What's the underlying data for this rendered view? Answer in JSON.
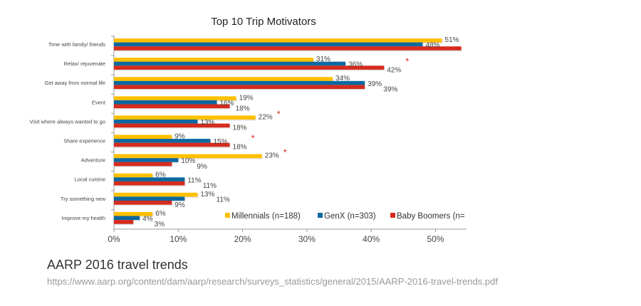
{
  "chart_data": {
    "type": "bar",
    "orientation": "horizontal",
    "title": "Top 10 Trip Motivators",
    "xlabel": "",
    "ylabel": "",
    "xlim": [
      0,
      55
    ],
    "x_ticks": [
      "0%",
      "10%",
      "20%",
      "30%",
      "40%",
      "50%"
    ],
    "x_tick_values": [
      0,
      10,
      20,
      30,
      40,
      50
    ],
    "grid": false,
    "legend_position": "bottom-right",
    "categories": [
      "Time with family/ friends",
      "Relax/ rejuvenate",
      "Get away from normal life",
      "Event",
      "Visit where always wanted to go",
      "Share experience",
      "Adventure",
      "Local cuisine",
      "Try something new",
      "Improve my health"
    ],
    "series": [
      {
        "name": "Millennials (n=188)",
        "color": "#FFC000",
        "values": [
          51,
          31,
          34,
          19,
          22,
          9,
          23,
          6,
          13,
          6
        ],
        "labels": [
          "51%",
          "31%",
          "34%",
          "19%",
          "22%",
          "9%",
          "23%",
          "6%",
          "13%",
          "6%"
        ]
      },
      {
        "name": "GenX (n=303)",
        "color": "#0B68A0",
        "values": [
          48,
          36,
          39,
          16,
          13,
          15,
          10,
          11,
          11,
          4
        ],
        "labels": [
          "48%",
          "36%",
          "39%",
          "16%",
          "13%",
          "15%",
          "10%",
          "11%",
          "11%",
          "4%"
        ]
      },
      {
        "name": "Baby Boomers (n=",
        "color": "#D52B1E",
        "values": [
          54,
          42,
          39,
          18,
          18,
          18,
          9,
          11,
          9,
          3
        ],
        "labels": [
          "",
          "42%",
          "39%",
          "18%",
          "18%",
          "18%",
          "9%",
          "11%",
          "9%",
          "3%"
        ]
      }
    ],
    "significance_markers": [
      {
        "category": "Relax/ rejuvenate",
        "series": "Baby Boomers (n=",
        "symbol": "*"
      },
      {
        "category": "Visit where always wanted to go",
        "series": "Millennials (n=188)",
        "symbol": "*"
      },
      {
        "category": "Share experience",
        "series": "Baby Boomers (n=",
        "symbol": "*"
      },
      {
        "category": "Adventure",
        "series": "Millennials (n=188)",
        "symbol": "*"
      }
    ]
  },
  "source": {
    "title": "AARP 2016 travel trends",
    "url": "https://www.aarp.org/content/dam/aarp/research/surveys_statistics/general/2015/AARP-2016-travel-trends.pdf"
  }
}
